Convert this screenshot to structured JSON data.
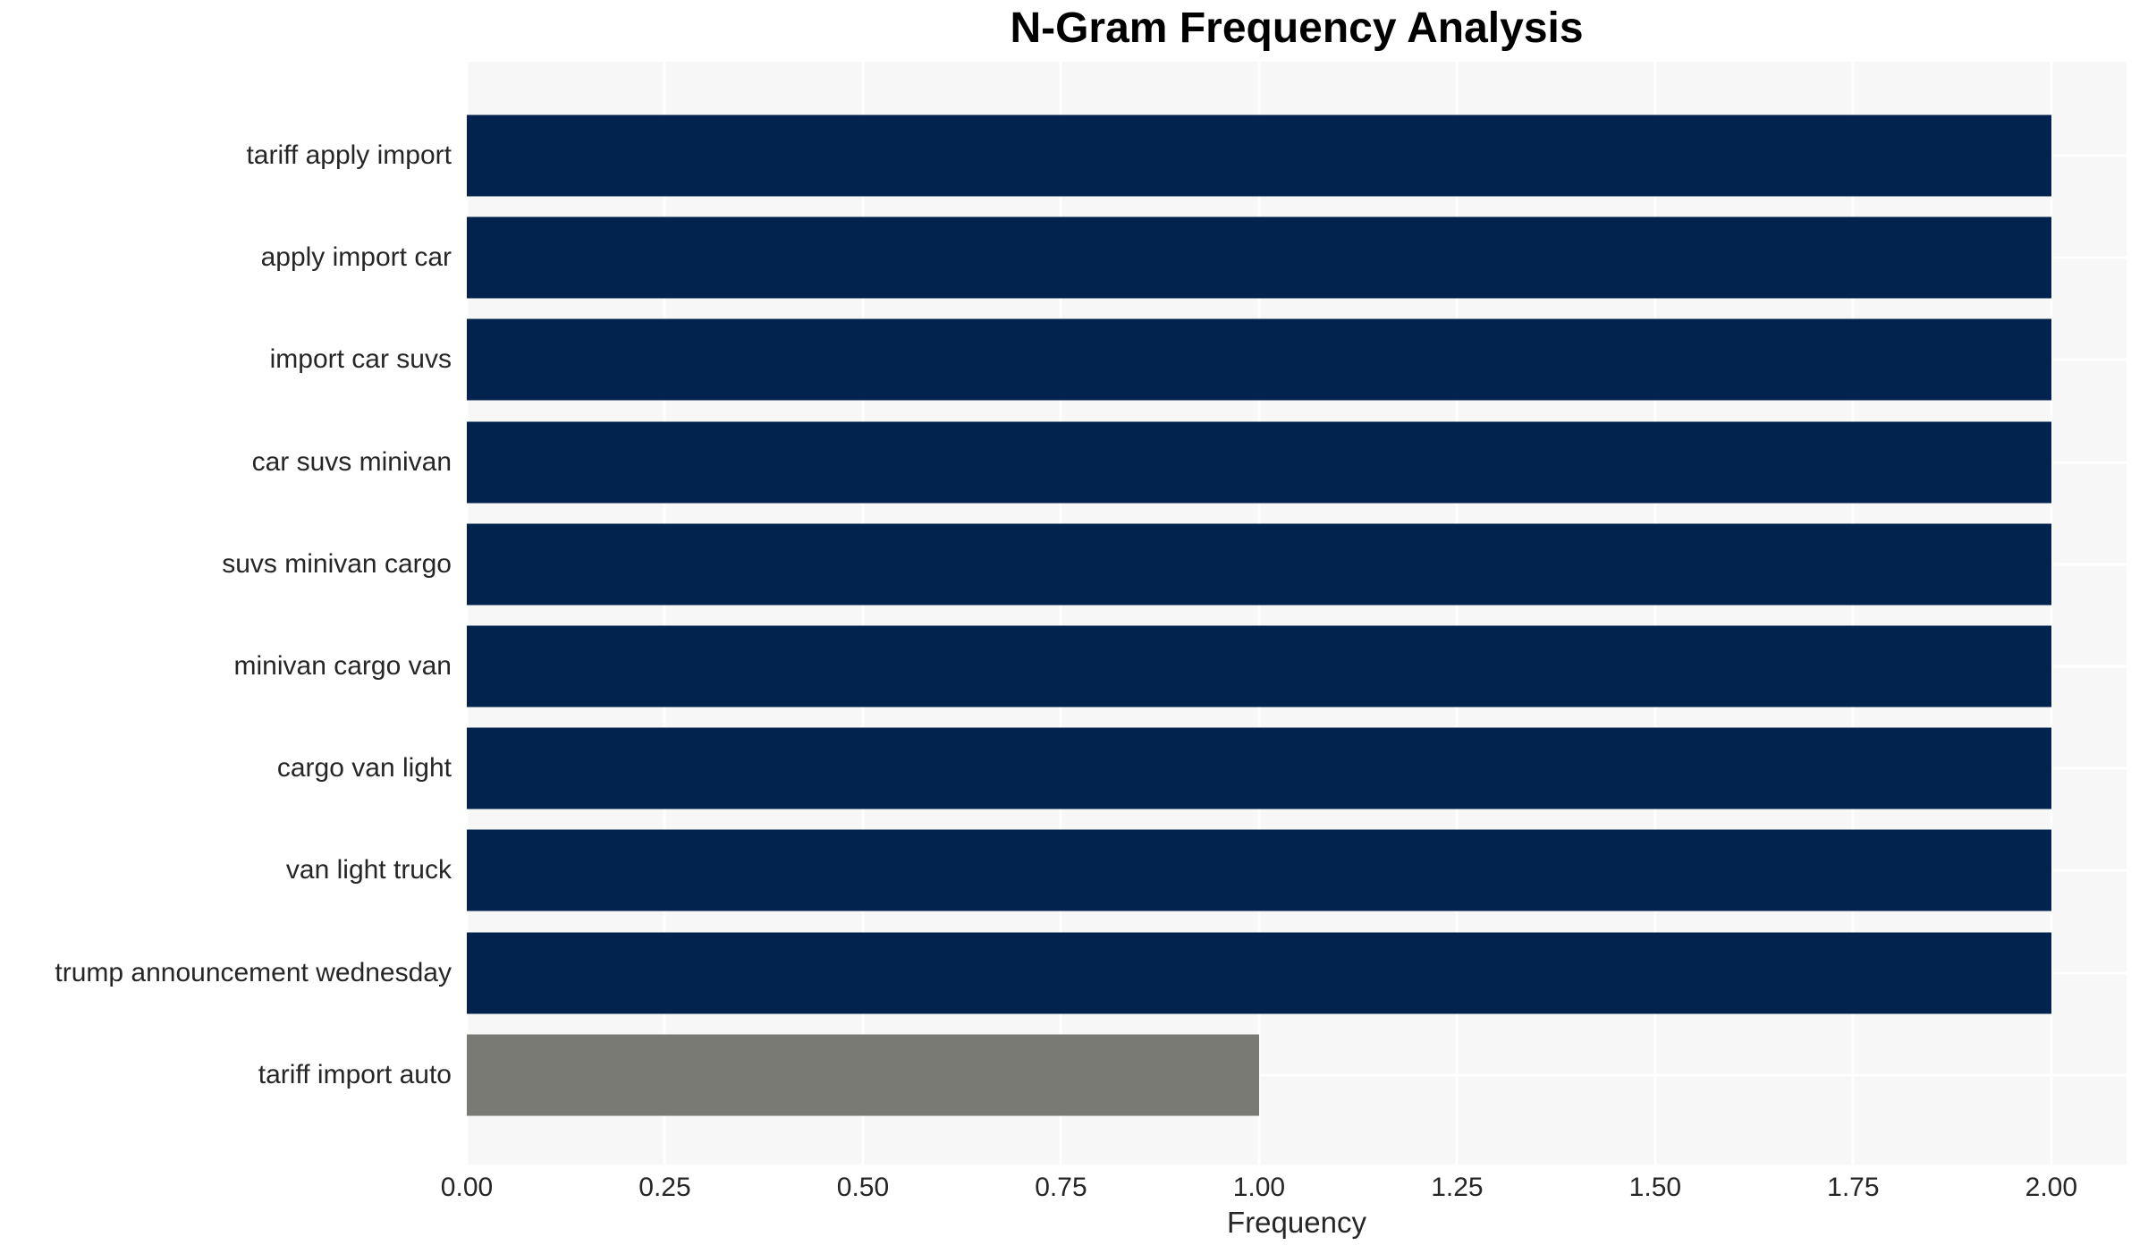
{
  "chart_data": {
    "type": "bar",
    "orientation": "horizontal",
    "title": "N-Gram Frequency Analysis",
    "xlabel": "Frequency",
    "ylabel": "",
    "categories": [
      "tariff apply import",
      "apply import car",
      "import car suvs",
      "car suvs minivan",
      "suvs minivan cargo",
      "minivan cargo van",
      "cargo van light",
      "van light truck",
      "trump announcement wednesday",
      "tariff import auto"
    ],
    "values": [
      2,
      2,
      2,
      2,
      2,
      2,
      2,
      2,
      2,
      1
    ],
    "bar_colors": [
      "#02234d",
      "#02234d",
      "#02234d",
      "#02234d",
      "#02234d",
      "#02234d",
      "#02234d",
      "#02234d",
      "#02234d",
      "#7a7a75"
    ],
    "xlim": [
      0,
      2.095
    ],
    "xticks": [
      0,
      0.25,
      0.5,
      0.75,
      1.0,
      1.25,
      1.5,
      1.75,
      2.0
    ],
    "xtick_labels": [
      "0.00",
      "0.25",
      "0.50",
      "0.75",
      "1.00",
      "1.25",
      "1.50",
      "1.75",
      "2.00"
    ],
    "grid": {
      "vertical": true,
      "horizontal": true,
      "position": "under-bars"
    },
    "legend": null,
    "colors": {
      "bar_default": "#02234d",
      "bar_muted": "#7a7a75",
      "plot_background": "#f7f7f7",
      "figure_background": "#ffffff",
      "grid_line": "#ffffff",
      "tick_text": "#262626",
      "title_text": "#000000"
    }
  }
}
